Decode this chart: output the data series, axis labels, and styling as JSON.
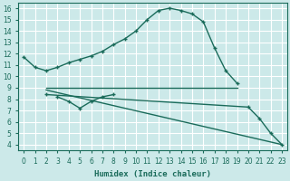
{
  "xlabel": "Humidex (Indice chaleur)",
  "xlim": [
    -0.5,
    23.5
  ],
  "ylim": [
    3.5,
    16.5
  ],
  "xticks": [
    0,
    1,
    2,
    3,
    4,
    5,
    6,
    7,
    8,
    9,
    10,
    11,
    12,
    13,
    14,
    15,
    16,
    17,
    18,
    19,
    20,
    21,
    22,
    23
  ],
  "yticks": [
    4,
    5,
    6,
    7,
    8,
    9,
    10,
    11,
    12,
    13,
    14,
    15,
    16
  ],
  "bg_color": "#cce9e9",
  "grid_color": "#ffffff",
  "line_color": "#1a6b5a",
  "line1": {
    "x": [
      0,
      1,
      2,
      3,
      4,
      5,
      6,
      7,
      8,
      9,
      10,
      11,
      12,
      13,
      14,
      15,
      16,
      17,
      18,
      19
    ],
    "y": [
      11.7,
      10.8,
      10.5,
      10.8,
      11.2,
      11.5,
      11.8,
      12.2,
      12.8,
      13.3,
      14.0,
      15.0,
      15.8,
      16.0,
      15.8,
      15.5,
      14.8,
      12.5,
      10.5,
      9.4
    ]
  },
  "line2": {
    "x": [
      2,
      19
    ],
    "y": [
      9.0,
      9.0
    ]
  },
  "line3": {
    "x": [
      3,
      4,
      5,
      6,
      7,
      8
    ],
    "y": [
      8.2,
      7.8,
      7.2,
      7.8,
      8.2,
      8.4
    ]
  },
  "line4": {
    "x": [
      2,
      23
    ],
    "y": [
      8.8,
      4.0
    ]
  },
  "line5": {
    "x": [
      2,
      20,
      21,
      22,
      23
    ],
    "y": [
      8.4,
      7.3,
      6.3,
      5.0,
      4.0
    ]
  }
}
